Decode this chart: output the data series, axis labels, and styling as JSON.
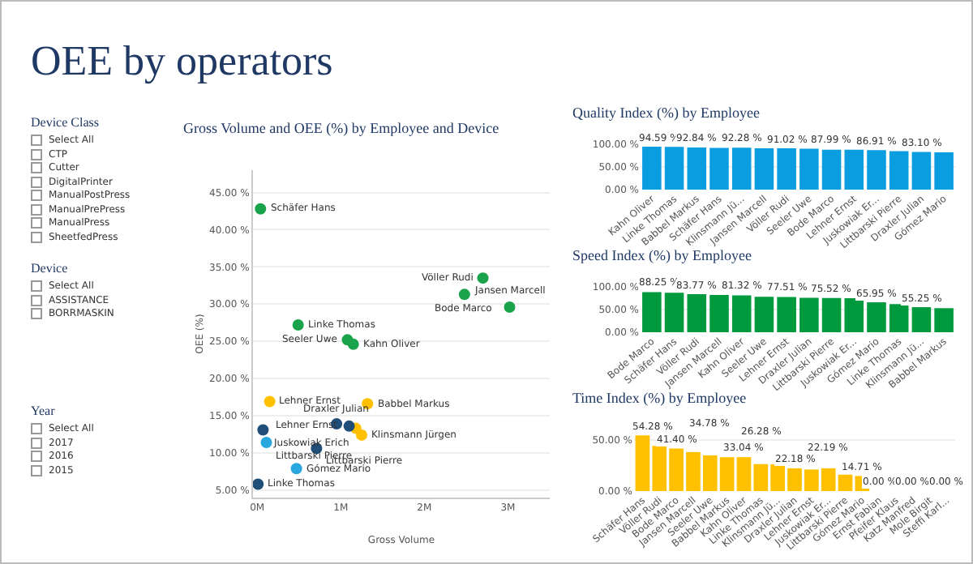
{
  "chart_data": [
    {
      "type": "other",
      "title": "OEE by operators"
    },
    {
      "type": "other",
      "title": "Device Class",
      "annotations": [
        "Select All",
        "CTP",
        "Cutter",
        "DigitalPrinter",
        "ManualPostPress",
        "ManualPrePress",
        "ManualPress",
        "SheetfedPress"
      ]
    },
    {
      "type": "other",
      "title": "Device",
      "annotations": [
        "Select All",
        "ASSISTANCE",
        "BORRMASKIN"
      ]
    },
    {
      "type": "other",
      "title": "Year",
      "annotations": [
        "Select All",
        "2017",
        "2016",
        "2015"
      ]
    },
    {
      "type": "scatter",
      "title": "Gross Volume and OEE (%) by Employee and Device",
      "xlabel": "Gross Volume",
      "ylabel": "OEE (%)",
      "marker": "circle",
      "grid": "y",
      "xlim": [
        -0.05,
        3.5
      ],
      "xticks": [
        {
          "value": 0,
          "label": "0M"
        },
        {
          "value": 1,
          "label": "1M"
        },
        {
          "value": 2,
          "label": "2M"
        },
        {
          "value": 3,
          "label": "3M"
        }
      ],
      "ylim": [
        4,
        48
      ],
      "yticks": [
        {
          "value": 5,
          "label": "5.00 %"
        },
        {
          "value": 10,
          "label": "10.00 %"
        },
        {
          "value": 15,
          "label": "15.00 %"
        },
        {
          "value": 20,
          "label": "20.00 %"
        },
        {
          "value": 25,
          "label": "25.00 %"
        },
        {
          "value": 30,
          "label": "30.00 %"
        },
        {
          "value": 35,
          "label": "35.00 %"
        },
        {
          "value": 40,
          "label": "40.00 %"
        },
        {
          "value": 45,
          "label": "45.00 %"
        }
      ],
      "series": [
        {
          "color": "#1aa34a",
          "x": [
            0.04,
            2.7,
            2.48,
            3.02,
            0.49,
            1.08,
            1.15
          ],
          "values": [
            42.8,
            33.5,
            31.3,
            29.6,
            27.2,
            25.2,
            24.6
          ]
        },
        {
          "color": "#ffc000",
          "x": [
            0.15,
            1.32,
            1.18,
            1.25
          ],
          "values": [
            16.9,
            16.6,
            13.3,
            12.4
          ]
        },
        {
          "color": "#1f4e79",
          "x": [
            0.07,
            0.95,
            1.1,
            0.71,
            0.01
          ],
          "values": [
            13.1,
            13.9,
            13.6,
            10.6,
            5.8
          ]
        },
        {
          "color": "#29a8e0",
          "x": [
            0.11,
            0.47
          ],
          "values": [
            11.4,
            7.9
          ]
        }
      ],
      "annotations": [
        {
          "text": "Schäfer Hans",
          "x": 0.04,
          "y": 42.8
        },
        {
          "text": "Völler Rudi",
          "x": 2.7,
          "y": 33.5
        },
        {
          "text": "Bode Marco",
          "x": 2.48,
          "y": 31.3
        },
        {
          "text": "Jansen Marcell",
          "x": 3.02,
          "y": 29.6
        },
        {
          "text": "Linke Thomas",
          "x": 0.49,
          "y": 27.2
        },
        {
          "text": "Seeler Uwe",
          "x": 1.08,
          "y": 25.2
        },
        {
          "text": "Kahn Oliver",
          "x": 1.15,
          "y": 24.6
        },
        {
          "text": "Lehner Ernst",
          "x": 0.15,
          "y": 16.9
        },
        {
          "text": "Babbel Markus",
          "x": 1.32,
          "y": 16.6
        },
        {
          "text": "Klinsmann Jürgen",
          "x": 1.25,
          "y": 12.4
        },
        {
          "text": "Juskowiak Erich",
          "x": 0.07,
          "y": 13.1
        },
        {
          "text": "Draxler Julian",
          "x": 0.95,
          "y": 13.9
        },
        {
          "text": "Lehner Ernst",
          "x": 1.1,
          "y": 13.6
        },
        {
          "text": "Littbarski Pierre",
          "x": 0.71,
          "y": 10.6
        },
        {
          "text": "Linke Thomas",
          "x": 0.01,
          "y": 5.8
        },
        {
          "text": "Littbarski Pierre",
          "x": 0.11,
          "y": 11.4
        },
        {
          "text": "Gómez Mario",
          "x": 0.47,
          "y": 7.9
        }
      ]
    },
    {
      "type": "bar",
      "title": "Quality Index (%) by Employee",
      "color": "#0a9ee0",
      "grid": "y",
      "categories": [
        "Kahn Oliver",
        "Linke Thomas",
        "Babbel Markus",
        "Schäfer Hans",
        "Klinsmann Jü...",
        "Jansen Marcell",
        "Völler Rudi",
        "Seeler Uwe",
        "Bode Marco",
        "Lehner Ernst",
        "Juskowiak Er...",
        "Littbarski Pierre",
        "Draxler Julian",
        "Gómez Mario"
      ],
      "values": [
        94.59,
        94,
        92.84,
        92,
        92.28,
        91,
        91.02,
        90,
        87.99,
        88,
        86.91,
        85,
        83.1,
        82
      ],
      "value_labels": [
        "94.59 %",
        null,
        "92.84 %",
        null,
        "92.28 %",
        null,
        "91.02 %",
        null,
        "87.99 %",
        null,
        "86.91 %",
        null,
        "83.10 %",
        null
      ],
      "ylim": [
        0,
        100
      ],
      "yticks": [
        {
          "value": 0,
          "label": "0.00 %"
        },
        {
          "value": 50,
          "label": "50.00 %"
        },
        {
          "value": 100,
          "label": "100.00 %"
        }
      ]
    },
    {
      "type": "bar",
      "title": "Speed Index (%) by Employee",
      "color": "#009a3e",
      "grid": "y",
      "categories": [
        "Bode Marco",
        "Schäfer Hans",
        "Völler Rudi",
        "Jansen Marcell",
        "Kahn Oliver",
        "Seeler Uwe",
        "Lehner Ernst",
        "Draxler Julian",
        "Littbarski Pierre",
        "Juskowiak Er...",
        "Gómez Mario",
        "Linke Thomas",
        "Klinsmann Jü...",
        "Babbel Markus"
      ],
      "values": [
        88.25,
        87,
        83.77,
        82,
        81.32,
        78,
        77.51,
        76,
        75.52,
        75,
        65.95,
        62,
        55.25,
        53
      ],
      "value_labels": [
        "88.25 %",
        null,
        "83.77 %",
        null,
        "81.32 %",
        null,
        "77.51 %",
        null,
        "75.52 %",
        null,
        "65.95 %",
        null,
        "55.25 %",
        null
      ],
      "ylim": [
        0,
        100
      ],
      "yticks": [
        {
          "value": 0,
          "label": "0.00 %"
        },
        {
          "value": 50,
          "label": "50.00 %"
        },
        {
          "value": 100,
          "label": "100.00 %"
        }
      ]
    },
    {
      "type": "bar",
      "title": "Time Index (%) by Employee",
      "color": "#ffc000",
      "grid": "y",
      "categories": [
        "Schäfer Hans",
        "Völler Rudi",
        "Bode Marco",
        "Jansen Marcell",
        "Seeler Uwe",
        "Babbel Markus",
        "Kahn Oliver",
        "Linke Thomas",
        "Klinsmann Jü...",
        "Draxler Julian",
        "Lehner Ernst",
        "Juskowiak Er...",
        "Littbarski Pierre",
        "Gómez Mario",
        "Ernst Fabian",
        "Pfeifer Klaus",
        "Katz Manfred",
        "Mole Birgit",
        "Steffi Karl..."
      ],
      "values": [
        54.28,
        44,
        41.4,
        38,
        34.78,
        33,
        33.04,
        26.28,
        26,
        22.18,
        21,
        22.19,
        16,
        14.71,
        0,
        0,
        0,
        0,
        0
      ],
      "value_labels": [
        "54.28 %",
        null,
        "41.40 %",
        null,
        "34.78 %",
        null,
        "33.04 %",
        "26.28 %",
        null,
        "22.18 %",
        null,
        "22.19 %",
        null,
        "14.71 %",
        "0.00 %",
        null,
        "0.00 %",
        null,
        "0.00 %"
      ],
      "ylim": [
        0,
        60
      ],
      "yticks": [
        {
          "value": 0,
          "label": "0.00 %"
        },
        {
          "value": 50,
          "label": "50.00 %"
        }
      ]
    }
  ]
}
